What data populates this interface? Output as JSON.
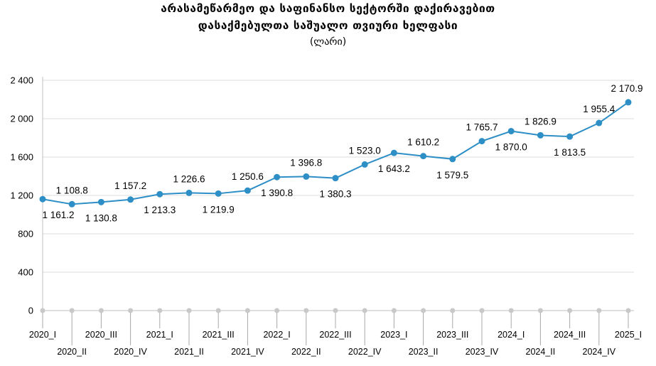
{
  "chart_data": {
    "type": "line",
    "title": "არასამეწარმეო და საფინანსო სექტორში დაქირავებით",
    "title_line2": "დასაქმებულთა საშუალო თვიური ხელფასი",
    "subtitle": "(ლარი)",
    "categories": [
      "2020_I",
      "2020_II",
      "2020_III",
      "2020_IV",
      "2021_I",
      "2021_II",
      "2021_III",
      "2021_IV",
      "2022_I",
      "2022_II",
      "2022_III",
      "2022_IV",
      "2023_I",
      "2023_II",
      "2023_III",
      "2023_IV",
      "2024_I",
      "2024_II",
      "2024_III",
      "2024_IV",
      "2025_I"
    ],
    "series": [
      {
        "values": [
          1161.2,
          1108.8,
          1130.8,
          1157.2,
          1213.3,
          1226.6,
          1219.9,
          1250.6,
          1390.8,
          1396.8,
          1380.3,
          1523.0,
          1643.2,
          1610.2,
          1579.5,
          1765.7,
          1870.0,
          1826.9,
          1813.5,
          1955.4,
          2170.9
        ],
        "labels": [
          "1 161.2",
          "1 108.8",
          "1 130.8",
          "1 157.2",
          "1 213.3",
          "1 226.6",
          "1 219.9",
          "1 250.6",
          "1 390.8",
          "1 396.8",
          "1 380.3",
          "1 523.0",
          "1 643.2",
          "1 610.2",
          "1 579.5",
          "1 765.7",
          "1 870.0",
          "1 826.9",
          "1 813.5",
          "1 955.4",
          "2 170.9"
        ],
        "label_position": [
          "below",
          "above",
          "below",
          "above",
          "below",
          "above",
          "below",
          "above",
          "below",
          "above",
          "below",
          "above",
          "below",
          "above",
          "below",
          "above",
          "below",
          "above",
          "below",
          "above",
          "above"
        ],
        "color": "#2e8fc6"
      }
    ],
    "ylim": [
      0,
      2400
    ],
    "yticks": [
      0,
      400,
      800,
      1200,
      1600,
      2000,
      2400
    ],
    "ytick_labels": [
      "0",
      "400",
      "800",
      "1 200",
      "1 600",
      "2 000",
      "2 400"
    ],
    "grid": "horizontal",
    "colors": {
      "line": "#2e8fc6",
      "grid": "#dcdcdc",
      "axis": "#bfbfbf",
      "baseline_marker": "#c8c8c8"
    }
  }
}
